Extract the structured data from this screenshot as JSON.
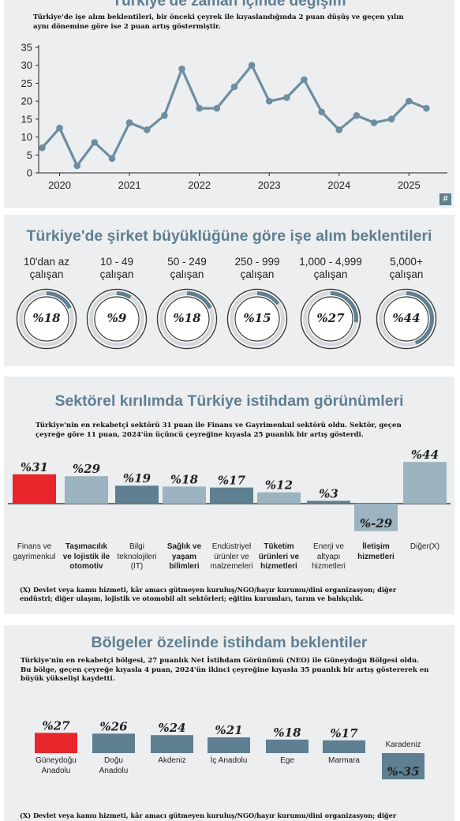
{
  "line_panel": {
    "title": "Türkiye'de zaman içinde değişim",
    "subtitle_line1": "Türkiye'de işe alım beklentileri, bir önceki çeyrek ile kıyaslandığında 2 puan düşüş ve geçen yılın",
    "subtitle_line2": "aynı dönemine göre ise 2 puan artış göstermiştir.",
    "badge": "#",
    "accent": "#6d8ea0"
  },
  "ring_panel": {
    "title": "Türkiye'de şirket büyüklüğüne göre işe alım beklentileri",
    "items": [
      {
        "line1": "10'dan az",
        "line2": "çalışan",
        "value_label": "%18"
      },
      {
        "line1": "10 - 49",
        "line2": "çalışan",
        "value_label": "%9"
      },
      {
        "line1": "50 - 249",
        "line2": "çalışan",
        "value_label": "%18"
      },
      {
        "line1": "250 - 999",
        "line2": "çalışan",
        "value_label": "%15"
      },
      {
        "line1": "1,000 - 4,999",
        "line2": "çalışan",
        "value_label": "%27"
      },
      {
        "line1": "5,000+",
        "line2": "çalışan",
        "value_label": "%44"
      }
    ],
    "ring_color": "#5f7f92"
  },
  "sector_panel": {
    "title": "Sektörel kırılımda Türkiye istihdam görünümleri",
    "lead_line1": "Türkiye'nin en rekabetçi sektörü 31 puan ile Finans ve Gayrimenkul sektörü oldu. Sektör, geçen",
    "lead_line2": "çeyreğe göre 11 puan, 2024'ün üçüncü çeyreğine kıyasla 25 puanlık bir artış gösterdi.",
    "categories": [
      {
        "lines": [
          "Finans ve",
          "gayrimenkul"
        ],
        "bold": false
      },
      {
        "lines": [
          "Taşımacılık",
          "ve lojistik ile",
          "otomotiv"
        ],
        "bold": true
      },
      {
        "lines": [
          "Bilgi",
          "teknolojileri",
          "(IT)"
        ],
        "bold": false
      },
      {
        "lines": [
          "Sağlık ve",
          "yaşam",
          "bilimleri"
        ],
        "bold": true
      },
      {
        "lines": [
          "Endüstriyel",
          "ürünler ve",
          "malzemeleri"
        ],
        "bold": false
      },
      {
        "lines": [
          "Tüketim",
          "ürünleri ve",
          "hizmetleri"
        ],
        "bold": true
      },
      {
        "lines": [
          "Enerji ve",
          "altyapı",
          "hizmetleri"
        ],
        "bold": false
      },
      {
        "lines": [
          "İletişim",
          "hizmetleri"
        ],
        "bold": true
      },
      {
        "lines": [
          "Diğer(X)"
        ],
        "bold": false
      }
    ],
    "value_labels": [
      "%31",
      "%29",
      "%19",
      "%18",
      "%17",
      "%12",
      "%3",
      "%-29",
      "%44"
    ],
    "foot_line1": "(X) Devlet veya kamu hizmeti, kâr amacı gütmeyen kuruluş/NGO/hayır kurumu/dini organizasyon; diğer",
    "foot_line2": "endüstri; diğer ulaşım, lojistik ve otomobil alt sektörleri; eğitim kurumları, tarım ve balıkçılık."
  },
  "region_panel": {
    "title": "Bölgeler özelinde istihdam beklentiler",
    "lead_line1": "Türkiye'nin en rekabetçi bölgesi, 27 puanlık Net İstihdam Görünümü (NEO) ile Güneydoğu Bölgesi oldu.",
    "lead_line2": "Bu bölge, geçen çeyreğe kıyasla 4 puan, 2024'ün ikinci çeyreğine kıyasla 35 puanlık bir artış göstererek en",
    "lead_line3": "büyük yükselişi kaydetti.",
    "categories": [
      {
        "lines": [
          "Güneydoğu",
          "Anadolu"
        ]
      },
      {
        "lines": [
          "Doğu",
          "Anadolu"
        ]
      },
      {
        "lines": [
          "Akdeniz"
        ]
      },
      {
        "lines": [
          "İç Anadolu"
        ]
      },
      {
        "lines": [
          "Ege"
        ]
      },
      {
        "lines": [
          "Marmara"
        ]
      },
      {
        "lines": [
          "Karadeniz"
        ]
      }
    ],
    "value_labels": [
      "%27",
      "%26",
      "%24",
      "%21",
      "%18",
      "%17",
      "%-35"
    ],
    "foot_line1": "(X) Devlet veya kamu hizmeti, kâr amacı gütmeyen kuruluş/NGO/hayır kurumu/dini organizasyon; diğer"
  },
  "colors": {
    "highlight_red": "#e8252b",
    "slate": "#5f7f92",
    "light_slate": "#9cb3c0",
    "title_blue": "#5f7f92"
  },
  "chart_data": [
    {
      "type": "line",
      "title": "Türkiye'de zaman içinde değişim",
      "x_tick_labels": [
        "2020",
        "2021",
        "2022",
        "2023",
        "2024",
        "2025"
      ],
      "x": [
        2019.75,
        2020.0,
        2020.25,
        2020.5,
        2020.75,
        2021.0,
        2021.25,
        2021.5,
        2021.75,
        2022.0,
        2022.25,
        2022.5,
        2022.75,
        2023.0,
        2023.25,
        2023.5,
        2023.75,
        2024.0,
        2024.25,
        2024.5,
        2024.75,
        2025.0,
        2025.25
      ],
      "values": [
        7,
        12.5,
        2,
        8.5,
        4,
        14,
        12,
        16,
        29,
        18,
        18,
        24,
        30,
        20,
        21,
        26,
        17,
        12,
        16,
        14,
        15,
        20,
        18
      ],
      "y_ticks": [
        0,
        5,
        10,
        15,
        20,
        25,
        30,
        35
      ],
      "ylim": [
        0,
        35
      ],
      "xlim": [
        2019.7,
        2025.55
      ],
      "grid": false
    },
    {
      "type": "donut",
      "title": "Türkiye'de şirket büyüklüğüne göre işe alım beklentileri",
      "categories": [
        "10'dan az çalışan",
        "10 - 49 çalışan",
        "50 - 249 çalışan",
        "250 - 999 çalışan",
        "1,000 - 4,999 çalışan",
        "5,000+ çalışan"
      ],
      "values": [
        18,
        9,
        18,
        15,
        27,
        44
      ]
    },
    {
      "type": "bar",
      "title": "Sektörel kırılımda Türkiye istihdam görünümleri",
      "categories": [
        "Finans ve gayrimenkul",
        "Taşımacılık ve lojistik ile otomotiv",
        "Bilgi teknolojileri (IT)",
        "Sağlık ve yaşam bilimleri",
        "Endüstriyel ürünler ve malzemeleri",
        "Tüketim ürünleri ve hizmetleri",
        "Enerji ve altyapı hizmetleri",
        "İletişim hizmetleri",
        "Diğer(X)"
      ],
      "values": [
        31,
        29,
        19,
        18,
        17,
        12,
        3,
        -29,
        44
      ],
      "bar_colors": [
        "#e8252b",
        "#9cb3c0",
        "#5f7f92",
        "#9cb3c0",
        "#5f7f92",
        "#9cb3c0",
        "#5f7f92",
        "#9cb3c0",
        "#9cb3c0"
      ]
    },
    {
      "type": "bar",
      "title": "Bölgeler özelinde istihdam beklentiler",
      "categories": [
        "Güneydoğu Anadolu",
        "Doğu Anadolu",
        "Akdeniz",
        "İç Anadolu",
        "Ege",
        "Marmara",
        "Karadeniz"
      ],
      "values": [
        27,
        26,
        24,
        21,
        18,
        17,
        -35
      ],
      "bar_colors": [
        "#e8252b",
        "#5f7f92",
        "#5f7f92",
        "#5f7f92",
        "#5f7f92",
        "#5f7f92",
        "#5f7f92"
      ]
    }
  ]
}
